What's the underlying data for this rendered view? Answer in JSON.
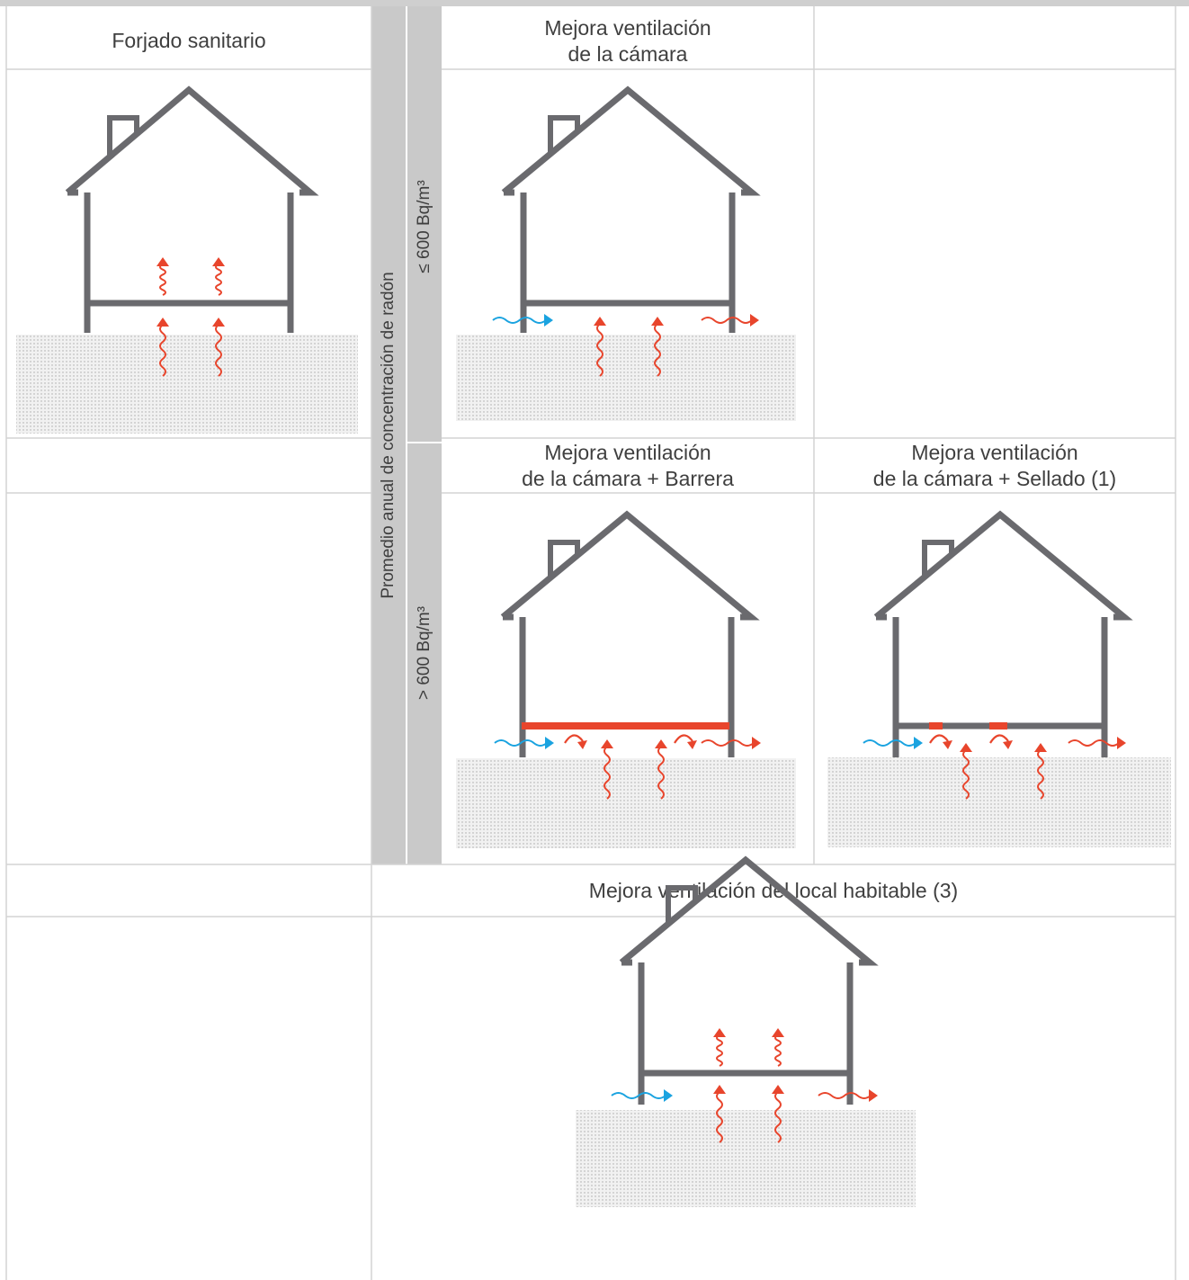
{
  "headers": {
    "forjado": "Forjado sanitario",
    "camara_line1": "Mejora ventilación",
    "camara_line2": "de la cámara",
    "barrera_line1": "Mejora ventilación",
    "barrera_line2": "de la cámara + Barrera",
    "sellado_line1": "Mejora ventilación",
    "sellado_line2": "de la cámara + Sellado (1)",
    "local": "Mejora ventilación del local habitable (3)"
  },
  "side_labels": {
    "axis": "Promedio anual de concentración de radón",
    "low": "≤ 600 Bq/m³",
    "high": "> 600 Bq/m³"
  },
  "colors": {
    "house": "#6a6a6e",
    "radon": "#e8452c",
    "air": "#1aa3e0",
    "grid": "#d4d4d4",
    "side_panel": "#c8c8c8",
    "soil": "#f1f1f1"
  }
}
